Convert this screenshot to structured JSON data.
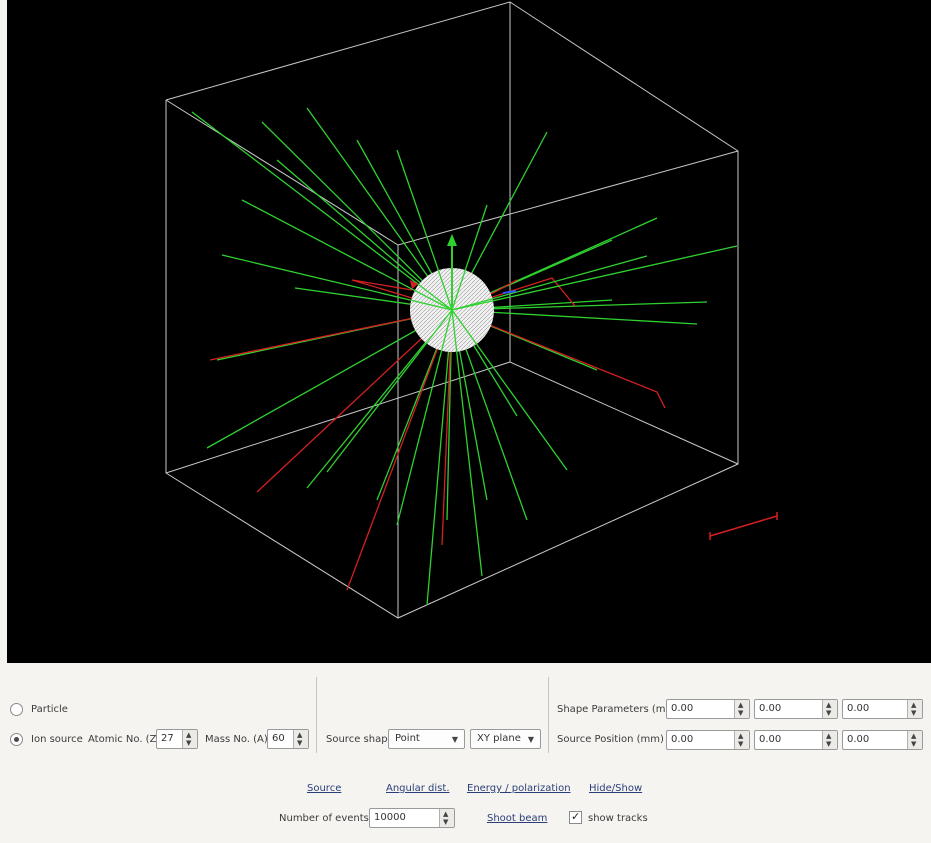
{
  "viewport": {
    "background": "#000000",
    "track_colors": {
      "neutral": "#2fd12f",
      "charged": "#d42020",
      "box": "#c8c8c8",
      "sphere": "#ffffff"
    }
  },
  "source_type": {
    "particle_label": "Particle",
    "ion_label": "Ion source",
    "selected": "ion"
  },
  "ion": {
    "atomic_label": "Atomic No. (Z)",
    "atomic_value": "27",
    "mass_label": "Mass No. (A)",
    "mass_value": "60"
  },
  "source_shape": {
    "label": "Source shape",
    "shape_value": "Point",
    "plane_value": "XY plane"
  },
  "shape_parameters": {
    "label": "Shape Parameters (mm)",
    "values": [
      "0.00",
      "0.00",
      "0.00"
    ]
  },
  "source_position": {
    "label": "Source Position (mm)",
    "values": [
      "0.00",
      "0.00",
      "0.00"
    ]
  },
  "links": {
    "source": "Source",
    "angular": "Angular dist.",
    "energy": "Energy / polarization",
    "hide_show": "Hide/Show",
    "shoot": "Shoot beam"
  },
  "events": {
    "label": "Number of events",
    "value": "10000"
  },
  "show_tracks": {
    "label": "show tracks",
    "checked": true
  }
}
